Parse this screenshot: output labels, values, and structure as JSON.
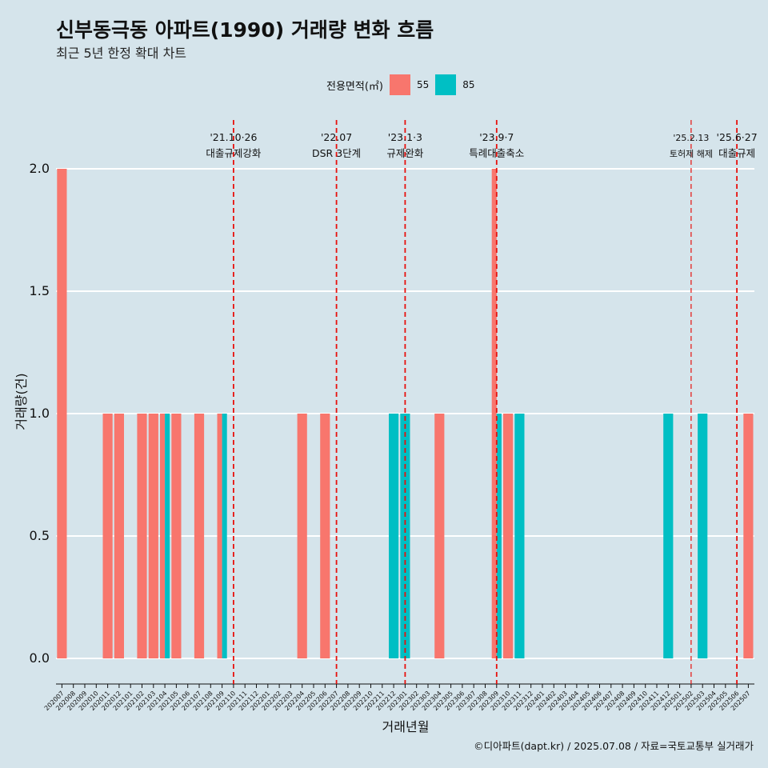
{
  "chart_data": {
    "type": "bar",
    "title": "신부동극동 아파트(1990) 거래량 변화 흐름",
    "subtitle": "최근 5년 한정 확대 차트",
    "xlabel": "거래년월",
    "ylabel": "거래량(건)",
    "ylim": [
      0,
      2
    ],
    "yticks": [
      "0.0",
      "0.5",
      "1.0",
      "1.5",
      "2.0"
    ],
    "ytick_values": [
      0,
      0.5,
      1,
      1.5,
      2
    ],
    "grid": true,
    "legend": {
      "title": "전용면적(㎡)",
      "placement": "top",
      "entries": [
        {
          "label": "55",
          "color": "#f8766d"
        },
        {
          "label": "85",
          "color": "#00bfc4"
        }
      ]
    },
    "categories": [
      "202007",
      "202008",
      "202009",
      "202010",
      "202011",
      "202012",
      "202101",
      "202102",
      "202103",
      "202104",
      "202105",
      "202106",
      "202107",
      "202108",
      "202109",
      "202110",
      "202111",
      "202112",
      "202201",
      "202202",
      "202203",
      "202204",
      "202205",
      "202206",
      "202207",
      "202208",
      "202209",
      "202210",
      "202211",
      "202212",
      "202301",
      "202302",
      "202303",
      "202304",
      "202305",
      "202306",
      "202307",
      "202308",
      "202309",
      "202310",
      "202311",
      "202312",
      "202401",
      "202402",
      "202403",
      "202404",
      "202405",
      "202406",
      "202407",
      "202408",
      "202409",
      "202410",
      "202411",
      "202412",
      "202501",
      "202502",
      "202503",
      "202504",
      "202505",
      "202506",
      "202507"
    ],
    "series": [
      {
        "name": "55",
        "color": "#f8766d",
        "values": [
          2,
          0,
          0,
          0,
          1,
          1,
          0,
          1,
          1,
          1,
          1,
          0,
          1,
          0,
          1,
          0,
          0,
          0,
          0,
          0,
          0,
          1,
          0,
          1,
          0,
          0,
          0,
          0,
          0,
          0,
          0,
          0,
          0,
          1,
          0,
          0,
          0,
          0,
          2,
          1,
          0,
          0,
          0,
          0,
          0,
          0,
          0,
          0,
          0,
          0,
          0,
          0,
          0,
          0,
          0,
          0,
          0,
          0,
          0,
          0,
          1
        ]
      },
      {
        "name": "85",
        "color": "#00bfc4",
        "values": [
          0,
          0,
          0,
          0,
          0,
          0,
          0,
          0,
          0,
          1,
          0,
          0,
          0,
          0,
          1,
          0,
          0,
          0,
          0,
          0,
          0,
          0,
          0,
          0,
          0,
          0,
          0,
          0,
          0,
          1,
          1,
          0,
          0,
          0,
          0,
          0,
          0,
          0,
          1,
          0,
          1,
          0,
          0,
          0,
          0,
          0,
          0,
          0,
          0,
          0,
          0,
          0,
          0,
          1,
          0,
          0,
          1,
          0,
          0,
          0,
          0
        ]
      }
    ],
    "annotations": [
      {
        "date": "'21.10·26",
        "label": "대출규제강화",
        "x": "202110",
        "small": false
      },
      {
        "date": "'22.07",
        "label": "DSR 3단계",
        "x": "202207",
        "small": false
      },
      {
        "date": "'23.1·3",
        "label": "규제완화",
        "x": "202301",
        "small": false
      },
      {
        "date": "'23.9·7",
        "label": "특례대출축소",
        "x": "202309",
        "small": false
      },
      {
        "date": "'25.2.13",
        "label": "토허제 해제",
        "x": "202502",
        "small": true
      },
      {
        "date": "'25.6·27",
        "label": "대출규제",
        "x": "202506",
        "small": false
      }
    ]
  },
  "caption": "©디아파트(dapt.kr) / 2025.07.08 / 자료=국토교통부 실거래가"
}
